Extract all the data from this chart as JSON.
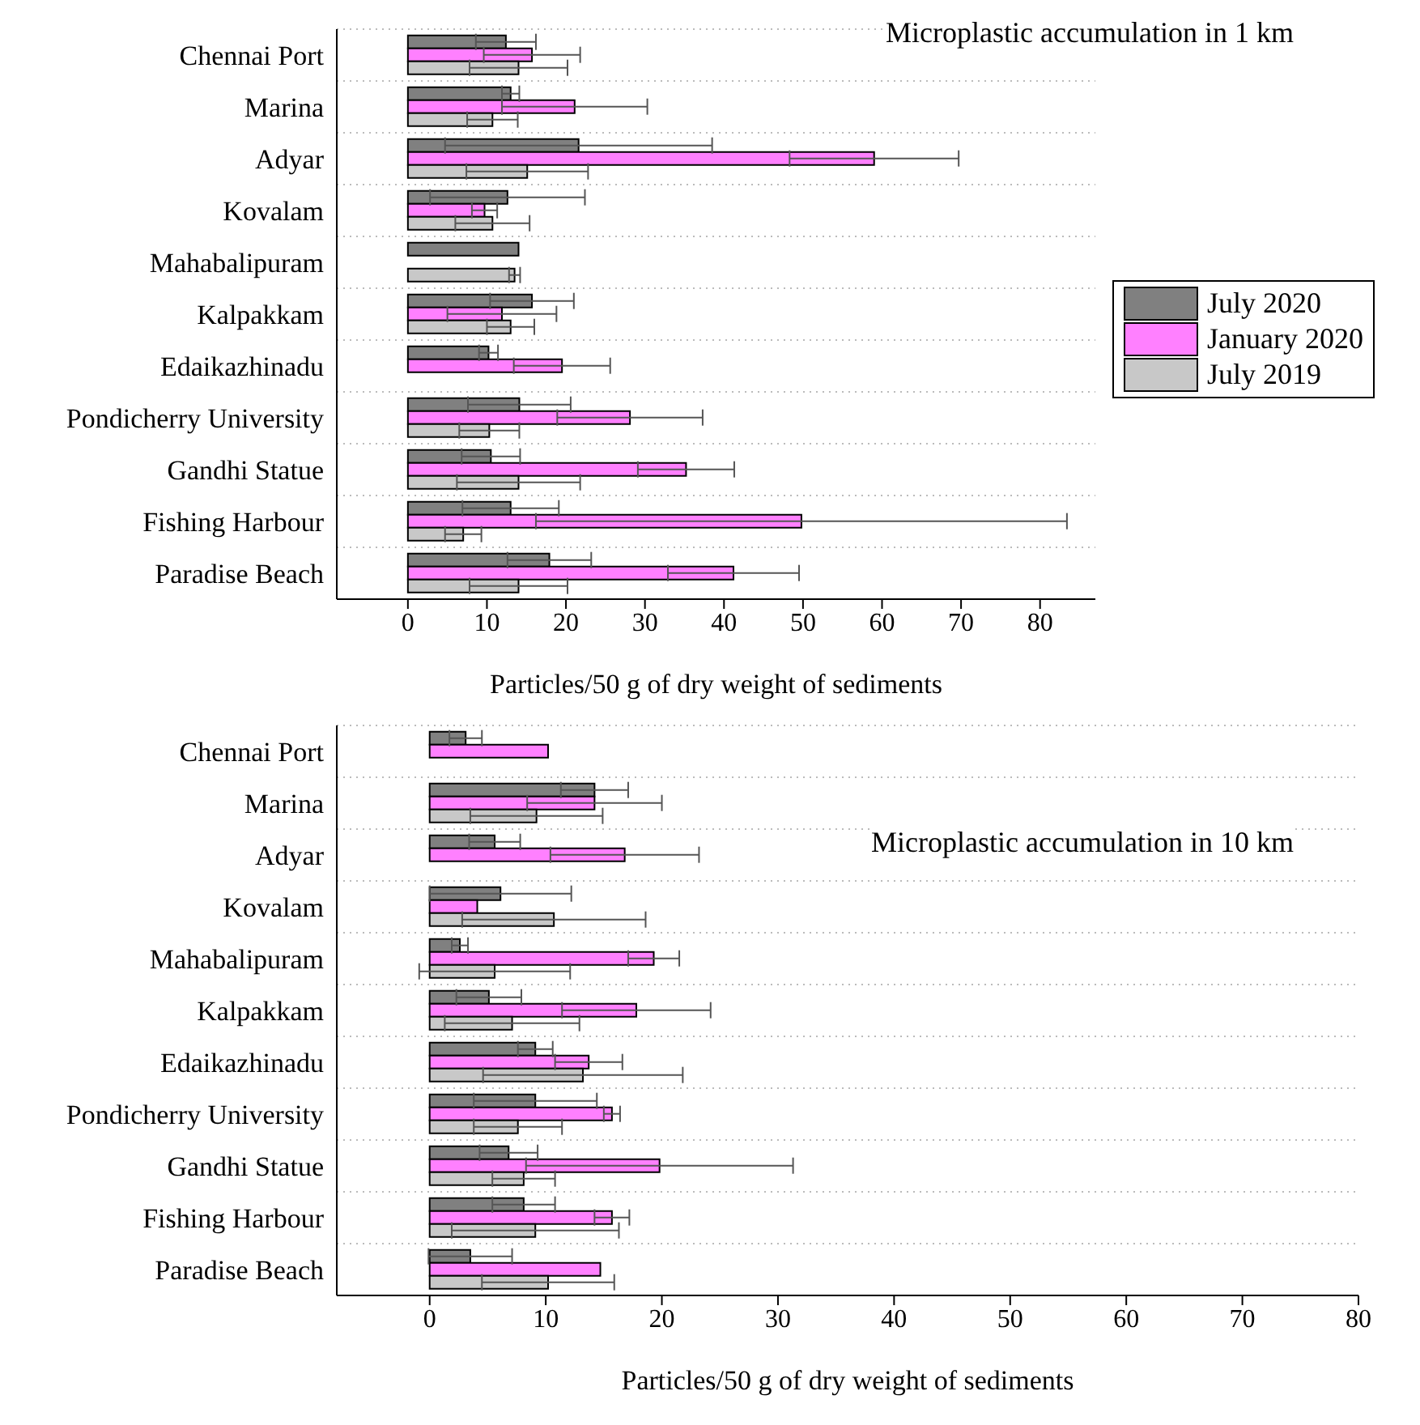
{
  "chart_data": [
    {
      "type": "bar",
      "orientation": "horizontal",
      "title": "Microplastic accumulation in 1 km",
      "xlabel": "Particles/50 g of dry weight of sediments",
      "categories": [
        "Chennai Port",
        "Marina",
        "Adyar",
        "Kovalam",
        "Mahabalipuram",
        "Kalpakkam",
        "Edaikazhinadu",
        "Pondicherry University",
        "Gandhi Statue",
        "Fishing Harbour",
        "Paradise Beach"
      ],
      "series": [
        {
          "name": "July 2020",
          "color": "#808080",
          "values": [
            12.4,
            13.0,
            21.6,
            12.6,
            14.0,
            15.7,
            10.2,
            14.1,
            10.5,
            13.0,
            17.9
          ],
          "errors": [
            3.8,
            1.1,
            16.9,
            9.8,
            null,
            5.3,
            1.2,
            6.5,
            3.7,
            6.1,
            5.3
          ]
        },
        {
          "name": "January 2020",
          "color": "#ff80ff",
          "values": [
            15.7,
            21.1,
            59.0,
            9.7,
            null,
            11.9,
            19.5,
            28.1,
            35.2,
            49.8,
            41.2
          ],
          "errors": [
            6.1,
            9.2,
            10.7,
            1.6,
            null,
            6.9,
            6.1,
            9.2,
            6.1,
            33.6,
            8.3
          ]
        },
        {
          "name": "July 2019",
          "color": "#c8c8c8",
          "values": [
            14.0,
            10.7,
            15.1,
            10.7,
            13.5,
            13.0,
            null,
            10.3,
            14.0,
            7.0,
            14.0
          ],
          "errors": [
            6.2,
            3.2,
            7.7,
            4.7,
            0.7,
            3.0,
            null,
            3.8,
            7.8,
            2.3,
            6.2
          ]
        }
      ],
      "xlim": [
        -9,
        87
      ],
      "xticks": [
        0,
        10,
        20,
        30,
        40,
        50,
        60,
        70,
        80
      ],
      "grid": "y",
      "legend": "right"
    },
    {
      "type": "bar",
      "orientation": "horizontal",
      "title": "Microplastic accumulation in 10 km",
      "xlabel": "Particles/50 g of dry weight of sediments",
      "categories": [
        "Chennai Port",
        "Marina",
        "Adyar",
        "Kovalam",
        "Mahabalipuram",
        "Kalpakkam",
        "Edaikazhinadu",
        "Pondicherry University",
        "Gandhi Statue",
        "Fishing Harbour",
        "Paradise Beach"
      ],
      "series": [
        {
          "color": "#808080",
          "values": [
            3.1,
            14.2,
            5.6,
            6.1,
            2.6,
            5.1,
            9.1,
            9.1,
            6.8,
            8.1,
            3.5
          ],
          "errors": [
            1.4,
            2.9,
            2.2,
            6.1,
            0.7,
            2.8,
            1.5,
            5.3,
            2.5,
            2.7,
            3.6
          ]
        },
        {
          "color": "#ff80ff",
          "values": [
            10.2,
            14.2,
            16.8,
            4.1,
            19.3,
            17.8,
            13.7,
            15.7,
            19.8,
            15.7,
            14.7
          ],
          "errors": [
            null,
            5.8,
            6.4,
            null,
            2.2,
            6.4,
            2.9,
            0.7,
            11.5,
            1.5,
            null
          ]
        },
        {
          "color": "#c8c8c8",
          "values": [
            null,
            9.2,
            null,
            10.7,
            5.6,
            7.1,
            13.2,
            7.6,
            8.1,
            9.1,
            10.2
          ],
          "errors": [
            null,
            5.7,
            null,
            7.9,
            6.5,
            5.8,
            8.6,
            3.8,
            2.7,
            7.2,
            5.7
          ]
        }
      ],
      "xlim": [
        -8,
        80
      ],
      "xticks": [
        0,
        10,
        20,
        30,
        40,
        50,
        60,
        70,
        80
      ],
      "grid": "y"
    }
  ]
}
